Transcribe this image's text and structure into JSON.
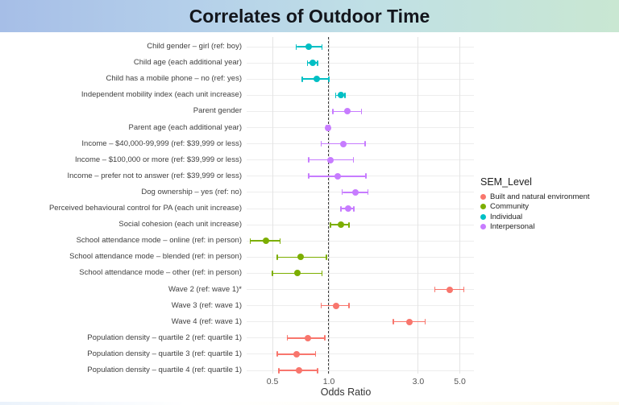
{
  "banner": {
    "title": "Correlates of Outdoor Time"
  },
  "chart_data": {
    "type": "scatter",
    "subtype": "forest-plot",
    "title": "Correlates of Outdoor Time",
    "xlabel": "Odds Ratio",
    "x_scale": "log",
    "x_ticks": [
      0.5,
      1.0,
      3.0,
      5.0
    ],
    "x_tick_labels": [
      "0.5",
      "1.0",
      "3.0",
      "5.0"
    ],
    "x_domain": [
      0.38,
      6.2
    ],
    "reference_line": 1.0,
    "grid": true,
    "legend": {
      "title": "SEM_Level",
      "position": "right",
      "entries": [
        "Built and natural environment",
        "Community",
        "Individual",
        "Interpersonal"
      ]
    },
    "series_colors": {
      "Built and natural environment": "#F8766D",
      "Community": "#7CAE00",
      "Individual": "#00BFC4",
      "Interpersonal": "#C77CFF"
    },
    "rows": [
      {
        "label": "Child gender – girl (ref: boy)",
        "group": "Individual",
        "or": 0.78,
        "low": 0.67,
        "high": 0.92
      },
      {
        "label": "Child age (each additional year)",
        "group": "Individual",
        "or": 0.82,
        "low": 0.77,
        "high": 0.87
      },
      {
        "label": "Child has a mobile phone – no (ref: yes)",
        "group": "Individual",
        "or": 0.86,
        "low": 0.72,
        "high": 1.0
      },
      {
        "label": "Independent mobility index (each unit increase)",
        "group": "Individual",
        "or": 1.16,
        "low": 1.09,
        "high": 1.22
      },
      {
        "label": "Parent gender",
        "group": "Interpersonal",
        "or": 1.26,
        "low": 1.05,
        "high": 1.49
      },
      {
        "label": "Parent age (each additional year)",
        "group": "Interpersonal",
        "or": 0.99,
        "low": 0.97,
        "high": 1.01
      },
      {
        "label": "Income – $40,000-99,999 (ref: $39,999 or less)",
        "group": "Interpersonal",
        "or": 1.19,
        "low": 0.91,
        "high": 1.56
      },
      {
        "label": "Income – $100,000 or more (ref: $39,999 or less)",
        "group": "Interpersonal",
        "or": 1.02,
        "low": 0.78,
        "high": 1.35
      },
      {
        "label": "Income – prefer not to answer (ref: $39,999 or less)",
        "group": "Interpersonal",
        "or": 1.12,
        "low": 0.78,
        "high": 1.58
      },
      {
        "label": "Dog ownership – yes (ref: no)",
        "group": "Interpersonal",
        "or": 1.39,
        "low": 1.18,
        "high": 1.62
      },
      {
        "label": "Perceived behavioural control for PA (each unit increase)",
        "group": "Interpersonal",
        "or": 1.27,
        "low": 1.16,
        "high": 1.36
      },
      {
        "label": "Social cohesion (each unit increase)",
        "group": "Community",
        "or": 1.16,
        "low": 1.02,
        "high": 1.28
      },
      {
        "label": "School attendance mode – online (ref: in person)",
        "group": "Community",
        "or": 0.46,
        "low": 0.38,
        "high": 0.55
      },
      {
        "label": "School attendance mode – blended (ref: in person)",
        "group": "Community",
        "or": 0.71,
        "low": 0.53,
        "high": 0.97
      },
      {
        "label": "School attendance mode – other (ref: in person)",
        "group": "Community",
        "or": 0.68,
        "low": 0.5,
        "high": 0.92
      },
      {
        "label": "Wave 2 (ref: wave 1)*",
        "group": "Built and natural environment",
        "or": 4.43,
        "low": 3.67,
        "high": 5.26
      },
      {
        "label": "Wave 3 (ref: wave 1)",
        "group": "Built and natural environment",
        "or": 1.09,
        "low": 0.91,
        "high": 1.28
      },
      {
        "label": "Wave 4 (ref: wave 1)",
        "group": "Built and natural environment",
        "or": 2.7,
        "low": 2.21,
        "high": 3.27
      },
      {
        "label": "Population density – quartile 2 (ref: quartile 1)",
        "group": "Built and natural environment",
        "or": 0.77,
        "low": 0.6,
        "high": 0.95
      },
      {
        "label": "Population density – quartile 3 (ref: quartile 1)",
        "group": "Built and natural environment",
        "or": 0.67,
        "low": 0.53,
        "high": 0.85
      },
      {
        "label": "Population density – quartile 4 (ref: quartile 1)",
        "group": "Built and natural environment",
        "or": 0.69,
        "low": 0.54,
        "high": 0.87
      }
    ]
  }
}
